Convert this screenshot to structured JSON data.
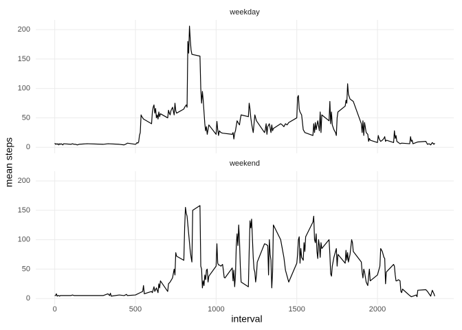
{
  "x_label": "interval",
  "y_label": "mean steps",
  "chart_data": [
    {
      "type": "line",
      "title": "weekday",
      "color": "#000000",
      "grid": true,
      "xlim": [
        -117.75,
        2472.75
      ],
      "xticks": [
        0,
        500,
        1000,
        1500,
        2000
      ],
      "ylim": [
        -10.3,
        216.5
      ],
      "yticks": [
        0,
        50,
        100,
        150,
        200
      ],
      "x": [
        0,
        5,
        10,
        15,
        20,
        25,
        30,
        35,
        40,
        45,
        50,
        55,
        100,
        110,
        120,
        130,
        140,
        150,
        200,
        300,
        330,
        400,
        430,
        445,
        450,
        500,
        505,
        510,
        515,
        520,
        525,
        530,
        535,
        540,
        550,
        600,
        605,
        610,
        615,
        620,
        625,
        630,
        635,
        640,
        645,
        650,
        655,
        700,
        705,
        710,
        715,
        720,
        730,
        740,
        745,
        750,
        755,
        800,
        805,
        810,
        815,
        820,
        825,
        830,
        835,
        840,
        845,
        850,
        900,
        905,
        910,
        915,
        920,
        925,
        930,
        935,
        940,
        945,
        950,
        955,
        1000,
        1005,
        1010,
        1015,
        1020,
        1030,
        1040,
        1100,
        1105,
        1110,
        1115,
        1120,
        1130,
        1140,
        1145,
        1150,
        1155,
        1200,
        1205,
        1210,
        1215,
        1220,
        1230,
        1240,
        1250,
        1300,
        1305,
        1310,
        1315,
        1320,
        1330,
        1340,
        1345,
        1350,
        1355,
        1400,
        1410,
        1420,
        1430,
        1440,
        1450,
        1500,
        1505,
        1510,
        1515,
        1520,
        1530,
        1540,
        1550,
        1600,
        1605,
        1610,
        1615,
        1620,
        1630,
        1640,
        1645,
        1650,
        1655,
        1700,
        1705,
        1710,
        1715,
        1720,
        1730,
        1740,
        1745,
        1750,
        1755,
        1800,
        1805,
        1810,
        1815,
        1820,
        1830,
        1840,
        1850,
        1900,
        1905,
        1910,
        1915,
        1920,
        1930,
        1940,
        1945,
        1950,
        1955,
        2000,
        2005,
        2010,
        2015,
        2020,
        2030,
        2040,
        2045,
        2050,
        2055,
        2100,
        2105,
        2110,
        2115,
        2120,
        2130,
        2140,
        2150,
        2200,
        2205,
        2210,
        2215,
        2220,
        2230,
        2240,
        2250,
        2300,
        2310,
        2320,
        2330,
        2340,
        2350,
        2355
      ],
      "values": [
        7,
        5,
        6,
        5,
        6,
        4,
        6,
        5,
        6,
        5,
        4,
        6,
        5,
        6,
        5,
        5,
        4,
        5,
        6,
        5,
        6,
        5,
        4,
        6,
        7,
        5,
        6,
        8,
        7,
        9,
        20,
        25,
        55,
        52,
        48,
        40,
        60,
        68,
        72,
        58,
        66,
        50,
        55,
        48,
        60,
        52,
        57,
        50,
        63,
        58,
        55,
        62,
        68,
        55,
        75,
        62,
        58,
        65,
        68,
        70,
        72,
        68,
        180,
        160,
        206,
        182,
        165,
        158,
        155,
        100,
        75,
        95,
        80,
        60,
        40,
        28,
        35,
        22,
        30,
        38,
        22,
        44,
        30,
        20,
        28,
        25,
        24,
        22,
        25,
        14,
        24,
        28,
        45,
        40,
        38,
        48,
        55,
        52,
        75,
        65,
        50,
        40,
        25,
        55,
        45,
        25,
        30,
        40,
        22,
        35,
        40,
        25,
        38,
        28,
        32,
        40,
        38,
        35,
        40,
        38,
        42,
        50,
        85,
        88,
        65,
        60,
        55,
        30,
        25,
        20,
        40,
        25,
        42,
        30,
        45,
        28,
        60,
        25,
        55,
        45,
        78,
        40,
        60,
        38,
        30,
        25,
        20,
        50,
        60,
        70,
        80,
        75,
        108,
        90,
        82,
        80,
        78,
        40,
        25,
        45,
        20,
        42,
        25,
        22,
        10,
        15,
        12,
        8,
        20,
        15,
        12,
        10,
        12,
        15,
        18,
        10,
        12,
        8,
        28,
        15,
        20,
        10,
        8,
        6,
        7,
        6,
        18,
        10,
        12,
        6,
        7,
        8,
        9,
        10,
        5,
        6,
        4,
        8,
        5,
        7
      ]
    },
    {
      "type": "line",
      "title": "weekend",
      "color": "#000000",
      "grid": true,
      "xlim": [
        -117.75,
        2472.75
      ],
      "xticks": [
        0,
        500,
        1000,
        1500,
        2000
      ],
      "ylim": [
        -10.3,
        216.5
      ],
      "yticks": [
        0,
        50,
        100,
        150,
        200
      ],
      "x": [
        0,
        5,
        10,
        15,
        20,
        25,
        30,
        35,
        40,
        100,
        110,
        120,
        130,
        200,
        300,
        330,
        340,
        345,
        350,
        400,
        430,
        445,
        450,
        500,
        530,
        545,
        550,
        555,
        600,
        605,
        610,
        615,
        620,
        630,
        640,
        645,
        650,
        655,
        700,
        705,
        715,
        730,
        740,
        745,
        750,
        755,
        800,
        805,
        810,
        815,
        820,
        830,
        840,
        845,
        850,
        855,
        900,
        905,
        910,
        915,
        920,
        925,
        930,
        935,
        940,
        945,
        950,
        955,
        1000,
        1005,
        1010,
        1015,
        1020,
        1030,
        1040,
        1045,
        1050,
        1055,
        1100,
        1105,
        1110,
        1115,
        1120,
        1125,
        1130,
        1135,
        1140,
        1145,
        1150,
        1155,
        1200,
        1205,
        1210,
        1215,
        1220,
        1230,
        1235,
        1240,
        1245,
        1250,
        1255,
        1300,
        1310,
        1320,
        1325,
        1330,
        1335,
        1340,
        1345,
        1350,
        1355,
        1400,
        1410,
        1420,
        1430,
        1440,
        1450,
        1500,
        1505,
        1510,
        1515,
        1520,
        1525,
        1530,
        1540,
        1545,
        1550,
        1555,
        1600,
        1605,
        1610,
        1615,
        1620,
        1625,
        1630,
        1635,
        1640,
        1645,
        1650,
        1655,
        1700,
        1705,
        1710,
        1715,
        1720,
        1730,
        1740,
        1745,
        1750,
        1755,
        1800,
        1805,
        1810,
        1815,
        1820,
        1830,
        1840,
        1845,
        1850,
        1900,
        1905,
        1910,
        1915,
        1920,
        1930,
        1940,
        1945,
        1950,
        1955,
        2000,
        2005,
        2010,
        2015,
        2020,
        2030,
        2040,
        2045,
        2050,
        2055,
        2100,
        2105,
        2110,
        2115,
        2120,
        2130,
        2140,
        2145,
        2150,
        2155,
        2200,
        2210,
        2220,
        2230,
        2240,
        2245,
        2250,
        2300,
        2310,
        2320,
        2330,
        2340,
        2350,
        2355
      ],
      "values": [
        5,
        5,
        8,
        4,
        5,
        5,
        4,
        5,
        5,
        5,
        6,
        5,
        5,
        5,
        5,
        8,
        5,
        9,
        4,
        6,
        5,
        7,
        5,
        6,
        10,
        12,
        22,
        8,
        12,
        10,
        15,
        20,
        12,
        18,
        10,
        25,
        18,
        30,
        12,
        25,
        28,
        35,
        50,
        40,
        78,
        72,
        65,
        120,
        155,
        145,
        140,
        110,
        80,
        70,
        62,
        150,
        158,
        55,
        50,
        18,
        30,
        22,
        40,
        32,
        48,
        50,
        28,
        38,
        55,
        93,
        60,
        57,
        57,
        55,
        58,
        48,
        36,
        35,
        52,
        30,
        48,
        20,
        40,
        90,
        110,
        90,
        125,
        98,
        55,
        28,
        20,
        80,
        132,
        120,
        135,
        70,
        50,
        45,
        28,
        40,
        62,
        93,
        92,
        90,
        40,
        100,
        75,
        65,
        18,
        45,
        125,
        100,
        85,
        70,
        48,
        38,
        28,
        60,
        75,
        100,
        105,
        60,
        85,
        70,
        65,
        95,
        80,
        105,
        130,
        140,
        100,
        95,
        110,
        80,
        68,
        100,
        90,
        70,
        95,
        85,
        100,
        75,
        42,
        38,
        55,
        70,
        80,
        85,
        55,
        75,
        60,
        82,
        65,
        78,
        62,
        75,
        100,
        95,
        80,
        62,
        45,
        35,
        50,
        45,
        28,
        22,
        38,
        50,
        30,
        40,
        45,
        50,
        55,
        85,
        80,
        70,
        68,
        25,
        45,
        58,
        55,
        40,
        30,
        30,
        32,
        30,
        12,
        10,
        16,
        5,
        3,
        4,
        5,
        6,
        3,
        14,
        15,
        12,
        8,
        4,
        14,
        8,
        4
      ]
    }
  ]
}
